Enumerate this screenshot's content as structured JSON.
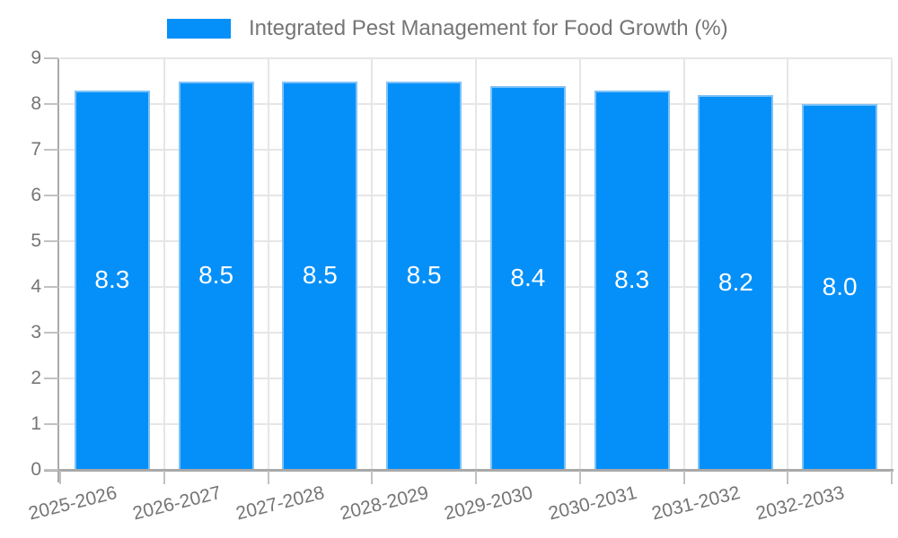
{
  "chart_data": {
    "type": "bar",
    "title": "Integrated Pest Management for Food Growth (%)",
    "legend_position": "top",
    "categories": [
      "2025-2026",
      "2026-2027",
      "2027-2028",
      "2028-2029",
      "2029-2030",
      "2030-2031",
      "2031-2032",
      "2032-2033"
    ],
    "values": [
      8.3,
      8.5,
      8.5,
      8.5,
      8.4,
      8.3,
      8.2,
      8.0
    ],
    "value_labels": [
      "8.3",
      "8.5",
      "8.5",
      "8.5",
      "8.4",
      "8.3",
      "8.2",
      "8.0"
    ],
    "xlabel": "",
    "ylabel": "",
    "ylim": [
      0,
      9
    ],
    "yticks": [
      0,
      1,
      2,
      3,
      4,
      5,
      6,
      7,
      8,
      9
    ],
    "grid": true,
    "colors": {
      "bar_fill": "#0590F9",
      "bar_border": "#7FC2F7",
      "value_label": "#FFFFFF",
      "grid": "#E6E6E6",
      "axis": "#A9A9A9",
      "tick": "#C2C2C2",
      "text": "#757575",
      "background": "#FFFFFF"
    }
  }
}
